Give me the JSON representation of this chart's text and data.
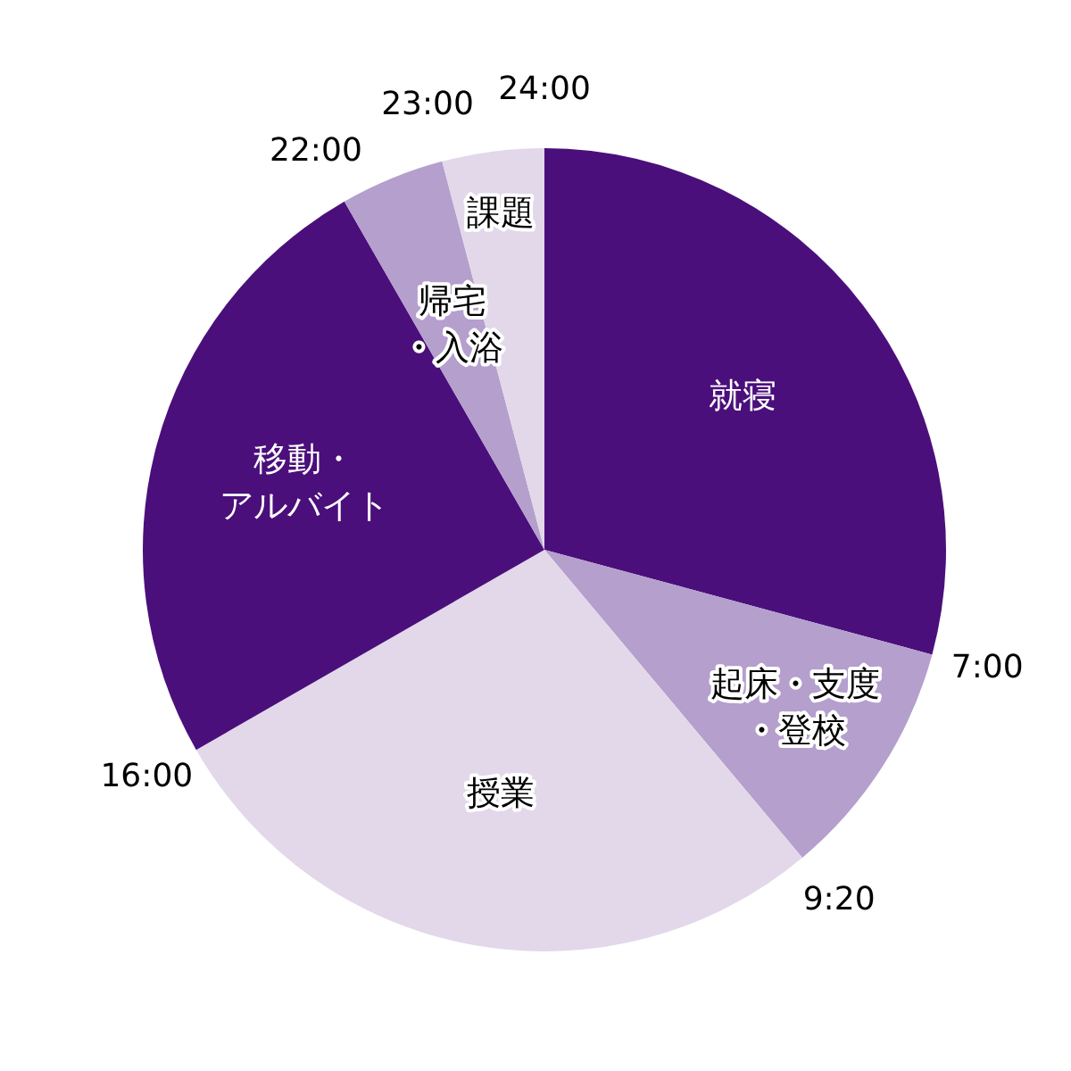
{
  "chart_data": {
    "type": "pie",
    "categories": [
      "就寝",
      "起床・支度・登校",
      "授業",
      "移動・アルバイト",
      "帰宅・入浴",
      "課題"
    ],
    "values": [
      29.2,
      9.7,
      27.8,
      25.0,
      4.2,
      4.1
    ],
    "colors": [
      "#4b0f7b",
      "#b49fcd",
      "#e2d8ea",
      "#4b0f7b",
      "#b49fcd",
      "#e2d8ea"
    ],
    "annotations": [
      "7:00",
      "9:20",
      "16:00",
      "22:00",
      "23:00",
      "24:00"
    ],
    "legend": false
  }
}
